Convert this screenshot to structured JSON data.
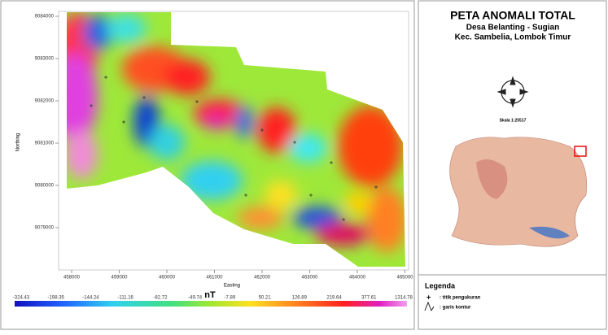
{
  "map": {
    "y_axis": {
      "label": "Northing",
      "ticks": [
        "9084000",
        "9083000",
        "9082000",
        "9081000",
        "9080000",
        "9079000"
      ]
    },
    "x_axis": {
      "label": "Easting",
      "ticks": [
        "458000",
        "459000",
        "460000",
        "461000",
        "462000",
        "463000",
        "464000",
        "465000"
      ]
    },
    "colorbar": {
      "unit": "nT",
      "labels": [
        "-324.43",
        "-198.35",
        "-144.24",
        "-111.16",
        "-82.72",
        "-49.74",
        "-7.89",
        "50.21",
        "126.89",
        "219.64",
        "377.61",
        "1314.78"
      ]
    }
  },
  "panel": {
    "title": "PETA ANOMALI TOTAL",
    "subtitle": "Desa Belanting - Sugian",
    "location": "Kec. Sambelia, Lombok Timur",
    "scale": "Skala 1:25517",
    "legend": {
      "title": "Legenda",
      "items": [
        {
          "symbol": "+",
          "label": ": titik pengukuran"
        },
        {
          "label": ": garis kontur"
        }
      ]
    }
  }
}
